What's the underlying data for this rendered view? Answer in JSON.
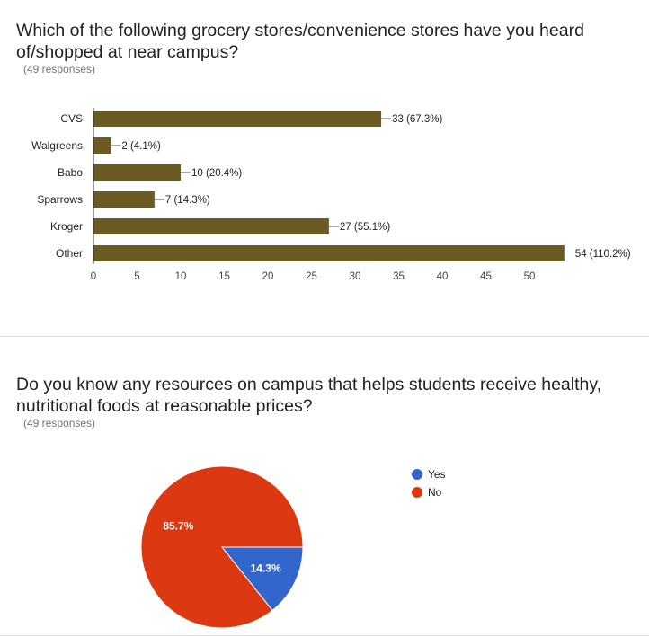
{
  "questions": [
    {
      "title": "Which of the following grocery stores/convenience stores have you heard of/shopped at near campus?",
      "responses": "(49 responses)"
    },
    {
      "title": "Do you know any resources on campus that helps students receive healthy, nutritional foods at reasonable prices?",
      "responses": "(49 responses)"
    }
  ],
  "chart_data": [
    {
      "type": "bar",
      "orientation": "horizontal",
      "categories": [
        "CVS",
        "Walgreens",
        "Babo",
        "Sparrows",
        "Kroger",
        "Other"
      ],
      "values": [
        33,
        2,
        10,
        7,
        27,
        54
      ],
      "data_labels": [
        "33 (67.3%)",
        "2 (4.1%)",
        "10 (20.4%)",
        "7 (14.3%)",
        "27 (55.1%)",
        "54 (110.2%)"
      ],
      "x_ticks": [
        "0",
        "5",
        "10",
        "15",
        "20",
        "25",
        "30",
        "35",
        "40",
        "45",
        "50"
      ],
      "xlim": [
        0,
        54
      ],
      "color": "#6b5a22",
      "grid": false
    },
    {
      "type": "pie",
      "labels": [
        "Yes",
        "No"
      ],
      "values": [
        14.3,
        85.7
      ],
      "slice_labels": [
        "14.3%",
        "85.7%"
      ],
      "colors": [
        "#3366cc",
        "#dc3912"
      ],
      "legend_position": "right"
    }
  ]
}
